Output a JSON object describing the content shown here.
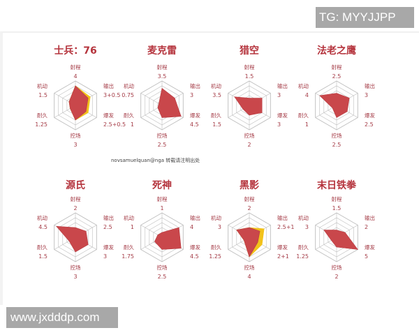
{
  "watermarks": {
    "top": "TG: MYYJJPP",
    "bottom": "www.jxdddp.com"
  },
  "credit": "novsamuelquan@nga 转载请注明出处",
  "colors": {
    "title": "#b5343d",
    "label": "#a43a45",
    "fill": "#c9474b",
    "bonus_fill": "#f2c21b",
    "grid": "#bdbdbd"
  },
  "axes": [
    "射程",
    "输出",
    "爆发",
    "控场",
    "耐久",
    "机动"
  ],
  "chart_data": [
    {
      "type": "radar",
      "title": "士兵：76",
      "axes": [
        "射程",
        "输出",
        "爆发",
        "控场",
        "耐久",
        "机动"
      ],
      "values": [
        4,
        3,
        2.5,
        3,
        1.25,
        1.5
      ],
      "bonus": [
        0,
        0.5,
        0.5,
        0,
        0,
        0
      ],
      "labels": [
        "4",
        "3+0.5",
        "2.5+0.5",
        "3",
        "1.25",
        "1.5"
      ],
      "rmax": 5
    },
    {
      "type": "radar",
      "title": "麦克雷",
      "axes": [
        "射程",
        "输出",
        "爆发",
        "控场",
        "耐久",
        "机动"
      ],
      "values": [
        3.5,
        3,
        4.5,
        2.5,
        1,
        0.75
      ],
      "bonus": [
        0,
        0,
        0,
        0,
        0,
        0
      ],
      "labels": [
        "3.5",
        "3",
        "4.5",
        "2.5",
        "1",
        "0.75"
      ],
      "rmax": 5
    },
    {
      "type": "radar",
      "title": "猎空",
      "axes": [
        "射程",
        "输出",
        "爆发",
        "控场",
        "耐久",
        "机动"
      ],
      "values": [
        1.5,
        3,
        3,
        2,
        1.5,
        3.5
      ],
      "bonus": [
        0,
        0,
        0,
        0,
        0,
        0
      ],
      "labels": [
        "1.5",
        "3",
        "3",
        "2",
        "1.5",
        "3.5"
      ],
      "rmax": 5
    },
    {
      "type": "radar",
      "title": "法老之鹰",
      "axes": [
        "射程",
        "输出",
        "爆发",
        "控场",
        "耐久",
        "机动"
      ],
      "values": [
        2.5,
        3,
        2.5,
        2.5,
        1,
        4
      ],
      "bonus": [
        0,
        0,
        0,
        0,
        0,
        0
      ],
      "labels": [
        "2.5",
        "3",
        "2.5",
        "2.5",
        "1",
        "4"
      ],
      "rmax": 5
    },
    {
      "type": "radar",
      "title": "源氏",
      "axes": [
        "射程",
        "输出",
        "爆发",
        "控场",
        "耐久",
        "机动"
      ],
      "values": [
        2,
        2.5,
        3,
        3,
        1.5,
        4.5
      ],
      "bonus": [
        0,
        0,
        0,
        0,
        0,
        0
      ],
      "labels": [
        "2",
        "2.5",
        "3",
        "3",
        "1.5",
        "4.5"
      ],
      "rmax": 5
    },
    {
      "type": "radar",
      "title": "死神",
      "axes": [
        "射程",
        "输出",
        "爆发",
        "控场",
        "耐久",
        "机动"
      ],
      "values": [
        1,
        4,
        4.5,
        2.5,
        1.75,
        1
      ],
      "bonus": [
        0,
        0,
        0,
        0,
        0,
        0
      ],
      "labels": [
        "1",
        "4",
        "4.5",
        "2.5",
        "1.75",
        "1"
      ],
      "rmax": 5
    },
    {
      "type": "radar",
      "title": "黑影",
      "axes": [
        "射程",
        "输出",
        "爆发",
        "控场",
        "耐久",
        "机动"
      ],
      "values": [
        2,
        2.5,
        2,
        4,
        1.25,
        3
      ],
      "bonus": [
        0,
        1,
        1,
        0,
        0,
        0
      ],
      "labels": [
        "2",
        "2.5+1",
        "2+1",
        "4",
        "1.25",
        "3"
      ],
      "rmax": 5
    },
    {
      "type": "radar",
      "title": "末日铁拳",
      "axes": [
        "射程",
        "输出",
        "爆发",
        "控场",
        "耐久",
        "机动"
      ],
      "values": [
        1.5,
        2,
        5,
        2,
        1.25,
        3
      ],
      "bonus": [
        0,
        0,
        0,
        0,
        0,
        0
      ],
      "labels": [
        "1.5",
        "2",
        "5",
        "2",
        "1.25",
        "3"
      ],
      "rmax": 5
    }
  ]
}
